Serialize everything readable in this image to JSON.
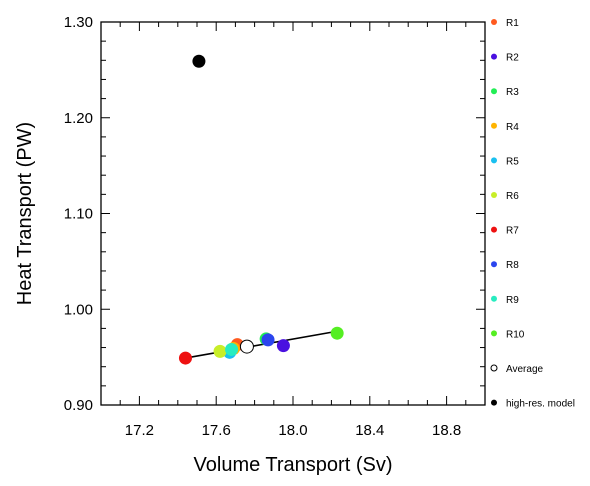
{
  "chart_data": {
    "type": "scatter",
    "title": "",
    "xlabel": "Volume Transport (Sv)",
    "ylabel": "Heat Transport (PW)",
    "xlim": [
      17.0,
      19.0
    ],
    "ylim": [
      0.9,
      1.3
    ],
    "xticks": [
      17.2,
      17.6,
      18.0,
      18.4,
      18.8
    ],
    "xtick_labels": [
      "17.2",
      "17.6",
      "18.0",
      "18.4",
      "18.8"
    ],
    "yticks": [
      0.9,
      1.0,
      1.1,
      1.2,
      1.3
    ],
    "ytick_labels": [
      "0.90",
      "1.00",
      "1.10",
      "1.20",
      "1.30"
    ],
    "grid": false,
    "legend_position": "right-outside",
    "series": [
      {
        "name": "R1",
        "color": "#ff5a1f",
        "x": 17.71,
        "y": 0.963
      },
      {
        "name": "R2",
        "color": "#4a10e0",
        "x": 17.95,
        "y": 0.962
      },
      {
        "name": "R3",
        "color": "#22ee55",
        "x": 17.86,
        "y": 0.969
      },
      {
        "name": "R4",
        "color": "#ffb400",
        "x": 17.69,
        "y": 0.959
      },
      {
        "name": "R5",
        "color": "#1ac0f0",
        "x": 17.67,
        "y": 0.955
      },
      {
        "name": "R6",
        "color": "#c8ee28",
        "x": 17.62,
        "y": 0.956
      },
      {
        "name": "R7",
        "color": "#ee1111",
        "x": 17.44,
        "y": 0.949
      },
      {
        "name": "R8",
        "color": "#2b45ee",
        "x": 17.87,
        "y": 0.968
      },
      {
        "name": "R9",
        "color": "#28ecc0",
        "x": 17.68,
        "y": 0.958
      },
      {
        "name": "R10",
        "color": "#55ee22",
        "x": 18.23,
        "y": 0.975
      },
      {
        "name": "Average",
        "color": "#000000",
        "hollow": true,
        "x": 17.76,
        "y": 0.961
      },
      {
        "name": "high-res. model",
        "color": "#000000",
        "x": 17.51,
        "y": 1.259
      }
    ],
    "fit_line": {
      "x": [
        17.44,
        18.23
      ],
      "y": [
        0.949,
        0.977
      ]
    }
  }
}
